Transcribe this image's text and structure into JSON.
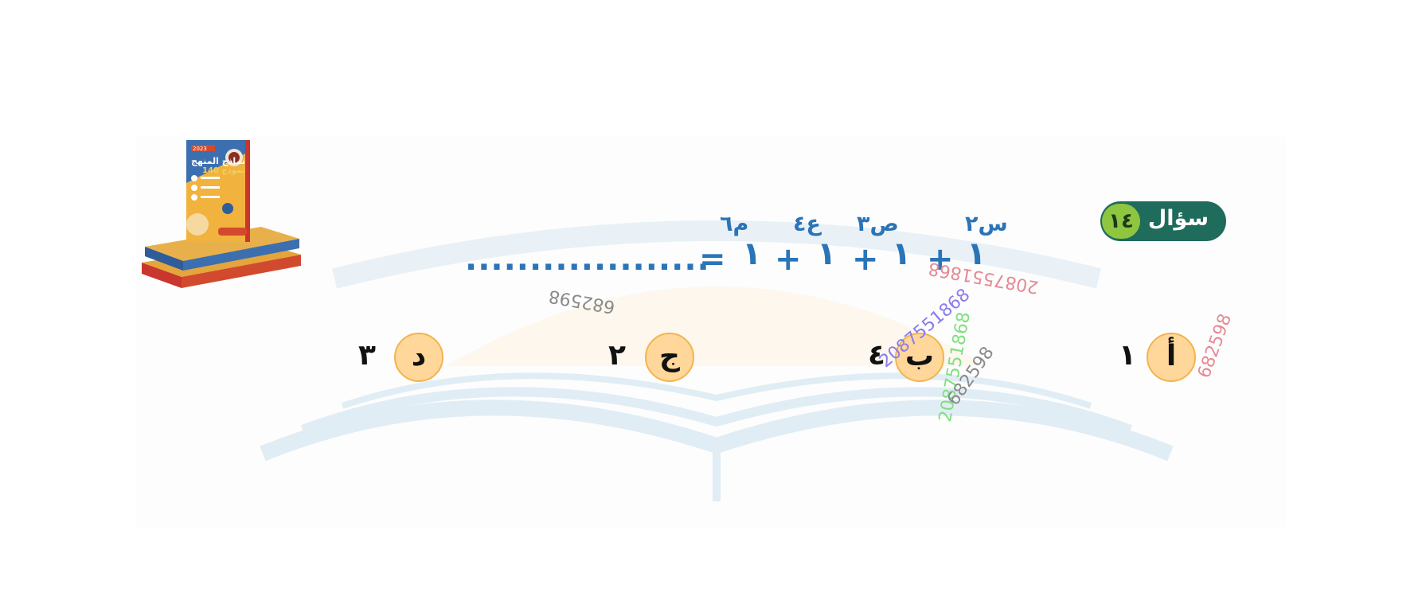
{
  "question": {
    "label": "سؤال",
    "number": "١٤"
  },
  "equation": {
    "terms": [
      {
        "base": "١",
        "exponent": "س٢"
      },
      {
        "base": "١",
        "exponent": "ص٣"
      },
      {
        "base": "١",
        "exponent": "ع٤"
      },
      {
        "base": "١",
        "exponent": "م٦"
      }
    ],
    "operator": "+",
    "equals": "=",
    "blank": "..................."
  },
  "options": [
    {
      "letter": "أ",
      "value": "١"
    },
    {
      "letter": "ب",
      "value": "٤"
    },
    {
      "letter": "ج",
      "value": "٢"
    },
    {
      "letter": "د",
      "value": "٣"
    }
  ],
  "watermarks": [
    {
      "text": "2087551868",
      "color": "#e58a94"
    },
    {
      "text": "682598",
      "color": "#e58a94"
    },
    {
      "text": "2087551868",
      "color": "#8a7cf0"
    },
    {
      "text": "2087551868",
      "color": "#7fe07f"
    },
    {
      "text": "682598",
      "color": "#8a8a8a"
    },
    {
      "text": "682598",
      "color": "#8a8a8a"
    }
  ],
  "book_cover": {
    "year": "2023",
    "title": "نماذج المنهج",
    "subtitle": "140 نموذج"
  },
  "colors": {
    "accent_blue": "#2a74b8",
    "badge_green": "#1f6b5c",
    "badge_number_bg": "#8fc640",
    "option_fill": "#ffd79a",
    "option_border": "#f2b44e"
  }
}
